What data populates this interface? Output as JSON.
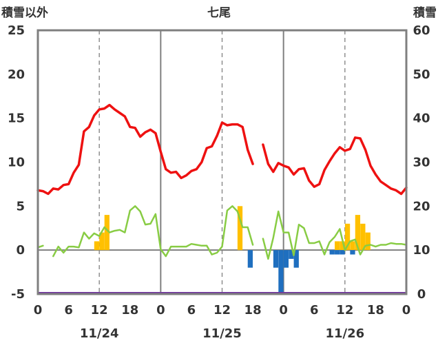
{
  "chart_data": {
    "type": "line",
    "title": "七尾",
    "left_axis_title": "積雪以外",
    "right_axis_title": "積雪",
    "ylim_left": [
      -5,
      25
    ],
    "ylim_right": [
      0,
      60
    ],
    "yticks_left": [
      "25",
      "20",
      "15",
      "10",
      "5",
      "0",
      "-5"
    ],
    "yticks_right": [
      "60",
      "50",
      "40",
      "30",
      "20",
      "10",
      "0"
    ],
    "xlim_hours": [
      0,
      72
    ],
    "xticks": [
      "0",
      "6",
      "12",
      "18",
      "0",
      "6",
      "12",
      "18",
      "0",
      "6",
      "12",
      "18",
      "0"
    ],
    "dates": [
      "11/24",
      "11/25",
      "11/26"
    ],
    "colors": {
      "red_line": "#ee1111",
      "green_line": "#88cc44",
      "orange_bar": "#ffc000",
      "blue_bar": "#1f6fbf",
      "purple_line": "#7030a0",
      "frame": "#7f7f7f"
    },
    "series": [
      {
        "name": "",
        "color": "red",
        "axis": "left",
        "x": [
          0,
          1,
          2,
          3,
          4,
          5,
          6,
          7,
          8,
          9,
          10,
          11,
          12,
          13,
          14,
          15,
          16,
          17,
          18,
          19,
          20,
          21,
          22,
          23,
          24,
          25,
          26,
          27,
          28,
          29,
          30,
          31,
          32,
          33,
          34,
          35,
          36,
          37,
          38,
          39,
          40,
          41,
          42,
          43,
          44,
          45,
          46,
          47,
          48,
          49,
          50,
          51,
          52,
          53,
          54,
          55,
          56,
          57,
          58,
          59,
          60,
          61,
          62,
          63,
          64,
          65,
          66,
          67,
          68,
          69,
          70,
          71,
          72
        ],
        "values": [
          6.8,
          6.7,
          6.4,
          7.0,
          6.9,
          7.4,
          7.5,
          8.8,
          9.7,
          13.5,
          14.0,
          15.3,
          16.0,
          16.1,
          16.5,
          16.0,
          15.6,
          15.2,
          14.0,
          13.9,
          12.9,
          13.4,
          13.7,
          13.3,
          11.2,
          9.2,
          8.8,
          8.9,
          8.2,
          8.5,
          9.0,
          9.2,
          10.0,
          11.6,
          11.8,
          13.0,
          14.5,
          14.2,
          14.3,
          14.3,
          14.0,
          11.4,
          9.8,
          null,
          12.0,
          9.8,
          8.9,
          9.9,
          9.6,
          9.4,
          8.6,
          9.2,
          9.3,
          7.9,
          7.2,
          7.5,
          9.1,
          10.1,
          11.0,
          11.7,
          11.3,
          11.5,
          12.8,
          12.7,
          11.4,
          9.6,
          8.6,
          7.8,
          7.4,
          7.0,
          6.8,
          6.4,
          7.1
        ]
      },
      {
        "name": "",
        "color": "green",
        "axis": "left",
        "x": [
          0,
          1,
          2,
          3,
          4,
          5,
          6,
          7,
          8,
          9,
          10,
          11,
          12,
          13,
          14,
          15,
          16,
          17,
          18,
          19,
          20,
          21,
          22,
          23,
          24,
          25,
          26,
          27,
          28,
          29,
          30,
          31,
          32,
          33,
          34,
          35,
          36,
          37,
          38,
          39,
          40,
          41,
          42,
          43,
          44,
          45,
          46,
          47,
          48,
          49,
          50,
          51,
          52,
          53,
          54,
          55,
          56,
          57,
          58,
          59,
          60,
          61,
          62,
          63,
          64,
          65,
          66,
          67,
          68,
          69,
          70,
          71,
          72
        ],
        "values": [
          0.3,
          0.5,
          null,
          -0.7,
          0.4,
          -0.3,
          0.4,
          0.4,
          0.3,
          2.0,
          1.3,
          1.9,
          1.6,
          2.6,
          2.0,
          2.2,
          2.3,
          2.0,
          4.5,
          5.0,
          4.4,
          2.9,
          3.0,
          4.1,
          0.1,
          -0.7,
          0.4,
          0.4,
          0.4,
          0.4,
          0.7,
          0.6,
          0.5,
          0.5,
          -0.5,
          -0.3,
          0.4,
          4.5,
          5.0,
          4.4,
          2.6,
          2.6,
          0.6,
          null,
          1.3,
          -1.0,
          1.4,
          4.4,
          2.0,
          2.0,
          -0.6,
          2.9,
          2.5,
          0.8,
          0.8,
          1.0,
          -0.5,
          0.9,
          1.5,
          2.4,
          0.0,
          1.0,
          1.2,
          -0.5,
          0.5,
          0.6,
          0.4,
          0.6,
          0.6,
          0.8,
          0.7,
          0.7,
          0.6
        ]
      }
    ],
    "bars": [
      {
        "name": "",
        "color": "orange",
        "axis": "left",
        "x": [
          11.5,
          12.5,
          13.5,
          39.5,
          58.5,
          59.5,
          60.5,
          61.5,
          62.5,
          63.5,
          64.5
        ],
        "values": [
          1.0,
          2.0,
          4.0,
          5.0,
          1.0,
          1.0,
          3.0,
          1.0,
          4.0,
          3.0,
          2.0
        ]
      },
      {
        "name": "",
        "color": "blue",
        "axis": "left",
        "x": [
          41.5,
          46.5,
          47.5,
          48.5,
          49.5,
          50.5,
          57.5,
          58.5,
          59.5,
          61.5
        ],
        "values": [
          -2.0,
          -2.0,
          -5.0,
          -2.0,
          -1.0,
          -2.0,
          -0.5,
          -0.5,
          -0.5,
          -0.5
        ]
      }
    ],
    "purple_line": {
      "axis": "right",
      "value": 0
    },
    "grid": "vertical dashed at 12h, solid at day boundaries"
  }
}
